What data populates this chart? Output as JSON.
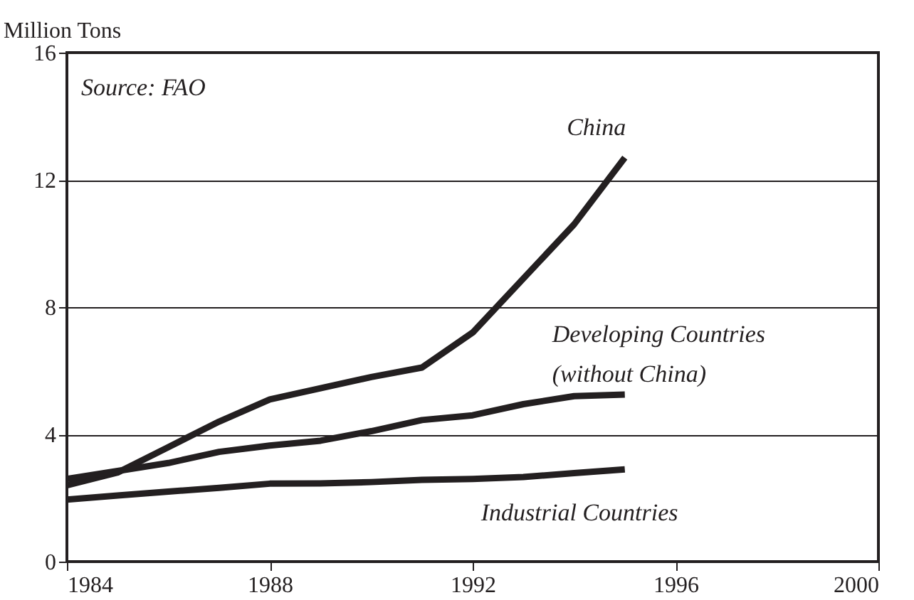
{
  "chart_data": {
    "type": "line",
    "ylabel": "Million Tons",
    "annotations": [
      "Source: FAO"
    ],
    "x": [
      1984,
      1985,
      1986,
      1987,
      1988,
      1989,
      1990,
      1991,
      1992,
      1993,
      1994,
      1995
    ],
    "series": [
      {
        "name": "China",
        "color": "#231f20",
        "values": [
          2.4,
          2.8,
          3.6,
          4.4,
          5.1,
          5.45,
          5.8,
          6.1,
          7.2,
          8.9,
          10.6,
          12.7
        ]
      },
      {
        "name": "Developing Countries (without China)",
        "color": "#231f20",
        "values": [
          2.6,
          2.85,
          3.1,
          3.45,
          3.65,
          3.8,
          4.1,
          4.45,
          4.6,
          4.95,
          5.2,
          5.25
        ]
      },
      {
        "name": "Industrial Countries",
        "color": "#231f20",
        "values": [
          1.95,
          2.08,
          2.2,
          2.32,
          2.45,
          2.46,
          2.5,
          2.57,
          2.6,
          2.66,
          2.78,
          2.9
        ]
      }
    ],
    "xlim": [
      1984,
      2000
    ],
    "xticks": [
      1984,
      1988,
      1992,
      1996,
      2000
    ],
    "ylim": [
      0,
      16
    ],
    "yticks": [
      0,
      4,
      8,
      12,
      16
    ],
    "grid": "y",
    "legend": false,
    "marker": "none",
    "line_style": "solid"
  }
}
